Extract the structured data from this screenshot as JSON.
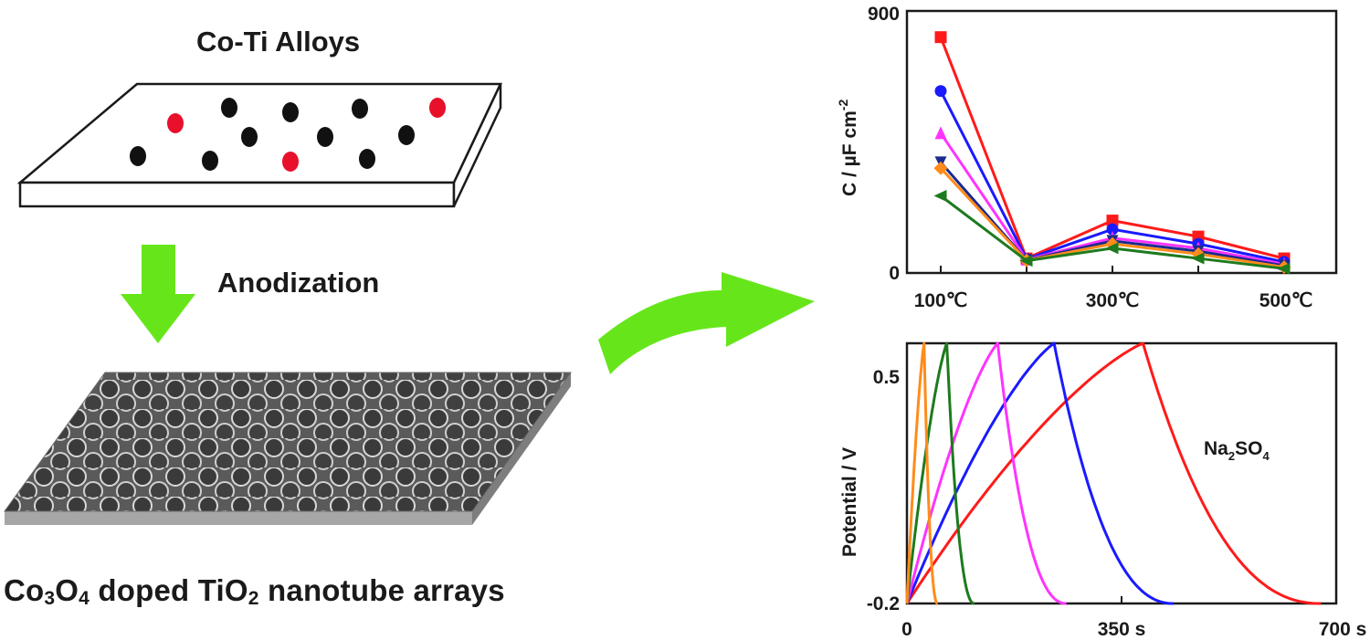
{
  "diagram": {
    "alloy_title": "Co-Ti Alloys",
    "process_label": "Anodization",
    "product_caption": {
      "part1": "Co",
      "sub1": "3",
      "part2": "O",
      "sub2": "4",
      "part3": " doped TiO",
      "sub3": "2",
      "part4": " nanotube arrays"
    }
  },
  "chart_data": [
    {
      "type": "line",
      "ylabel": "C / µF cm",
      "ylabel_superscript": "-2",
      "ylim": [
        0,
        900
      ],
      "y_ticks": [
        "900",
        "0"
      ],
      "x": [
        100,
        200,
        300,
        400,
        500
      ],
      "x_tick_labels": [
        "100℃",
        "300℃",
        "500℃"
      ],
      "series": [
        {
          "color": "#ff1a1a",
          "marker": "square",
          "values": [
            810,
            50,
            180,
            125,
            50
          ]
        },
        {
          "color": "#1a1aff",
          "marker": "circle",
          "values": [
            625,
            48,
            150,
            100,
            38
          ]
        },
        {
          "color": "#ff33ff",
          "marker": "triangle-up",
          "values": [
            480,
            46,
            120,
            85,
            30
          ]
        },
        {
          "color": "#1a2a8f",
          "marker": "triangle-down",
          "values": [
            380,
            44,
            110,
            75,
            25
          ]
        },
        {
          "color": "#ff8c1a",
          "marker": "diamond",
          "values": [
            360,
            43,
            100,
            65,
            20
          ]
        },
        {
          "color": "#1e7a1e",
          "marker": "triangle-left",
          "values": [
            265,
            42,
            85,
            50,
            15
          ]
        }
      ]
    },
    {
      "type": "line",
      "ylabel": "Potential / V",
      "y_ticks": [
        "0.5",
        "-0.2"
      ],
      "ylim": [
        -0.2,
        0.5
      ],
      "x_ticks": [
        "0",
        "350 s",
        "700 s"
      ],
      "xlim": [
        0,
        700
      ],
      "annotation": {
        "base": "Na",
        "sub1": "2",
        "mid": "SO",
        "sub2": "4"
      },
      "series": [
        {
          "color": "#ff1a1a",
          "charge_end": 385,
          "discharge_end": 675
        },
        {
          "color": "#1a1aff",
          "charge_end": 240,
          "discharge_end": 435
        },
        {
          "color": "#ff33ff",
          "charge_end": 148,
          "discharge_end": 260
        },
        {
          "color": "#1e7a1e",
          "charge_end": 65,
          "discharge_end": 110
        },
        {
          "color": "#ff8c1a",
          "charge_end": 28,
          "discharge_end": 50
        }
      ]
    }
  ]
}
